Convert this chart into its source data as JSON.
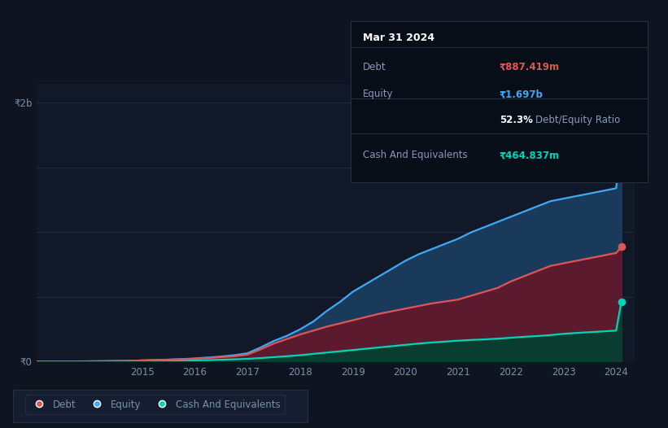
{
  "bg_color": "#0e1521",
  "plot_bg_color": "#111827",
  "years": [
    2013.0,
    2013.25,
    2013.5,
    2013.75,
    2014.0,
    2014.25,
    2014.5,
    2014.75,
    2015.0,
    2015.25,
    2015.5,
    2015.75,
    2016.0,
    2016.25,
    2016.5,
    2016.75,
    2017.0,
    2017.25,
    2017.5,
    2017.75,
    2018.0,
    2018.25,
    2018.5,
    2018.75,
    2019.0,
    2019.25,
    2019.5,
    2019.75,
    2020.0,
    2020.25,
    2020.5,
    2020.75,
    2021.0,
    2021.25,
    2021.5,
    2021.75,
    2022.0,
    2022.25,
    2022.5,
    2022.75,
    2023.0,
    2023.25,
    2023.5,
    2023.75,
    2024.0,
    2024.1
  ],
  "debt": [
    0.002,
    0.002,
    0.002,
    0.002,
    0.003,
    0.004,
    0.005,
    0.006,
    0.01,
    0.012,
    0.015,
    0.018,
    0.022,
    0.028,
    0.035,
    0.042,
    0.055,
    0.095,
    0.14,
    0.175,
    0.21,
    0.24,
    0.27,
    0.295,
    0.32,
    0.345,
    0.37,
    0.39,
    0.41,
    0.43,
    0.45,
    0.465,
    0.48,
    0.51,
    0.54,
    0.57,
    0.62,
    0.66,
    0.7,
    0.74,
    0.76,
    0.78,
    0.8,
    0.82,
    0.84,
    0.887
  ],
  "equity": [
    0.002,
    0.002,
    0.002,
    0.002,
    0.003,
    0.004,
    0.005,
    0.006,
    0.01,
    0.013,
    0.016,
    0.02,
    0.025,
    0.032,
    0.04,
    0.05,
    0.065,
    0.11,
    0.16,
    0.2,
    0.25,
    0.31,
    0.39,
    0.46,
    0.54,
    0.6,
    0.66,
    0.72,
    0.78,
    0.83,
    0.87,
    0.91,
    0.95,
    1.0,
    1.04,
    1.08,
    1.12,
    1.16,
    1.2,
    1.24,
    1.26,
    1.28,
    1.3,
    1.32,
    1.34,
    1.697
  ],
  "cash": [
    0.001,
    0.001,
    0.001,
    0.001,
    0.002,
    0.002,
    0.003,
    0.003,
    0.004,
    0.005,
    0.006,
    0.008,
    0.01,
    0.012,
    0.015,
    0.018,
    0.022,
    0.028,
    0.035,
    0.042,
    0.05,
    0.06,
    0.07,
    0.08,
    0.09,
    0.1,
    0.11,
    0.12,
    0.13,
    0.14,
    0.148,
    0.155,
    0.162,
    0.168,
    0.172,
    0.178,
    0.185,
    0.192,
    0.198,
    0.205,
    0.215,
    0.222,
    0.228,
    0.234,
    0.24,
    0.465
  ],
  "debt_color": "#e05555",
  "equity_color": "#3fa9f5",
  "cash_color": "#00d4b8",
  "debt_fill": "#5c1a2e",
  "equity_fill": "#1a3a5c",
  "cash_fill": "#0a3d30",
  "grid_color": "#1e2d45",
  "tick_color": "#7a8fa8",
  "xmin": 2013.0,
  "xmax": 2024.35,
  "ymin": 0.0,
  "ymax": 2.15,
  "ytick_positions": [
    0.0,
    2.0
  ],
  "ytick_labels": [
    "₹0",
    "₹2b"
  ],
  "xticks": [
    2015,
    2016,
    2017,
    2018,
    2019,
    2020,
    2021,
    2022,
    2023,
    2024
  ],
  "tooltip_title": "Mar 31 2024",
  "tooltip_rows": [
    {
      "label": "Debt",
      "value": "₹887.419m",
      "value_color": "#e05555",
      "has_divider": true
    },
    {
      "label": "Equity",
      "value": "₹1.697b",
      "value_color": "#3fa9f5",
      "has_divider": false
    },
    {
      "label": "",
      "value": "52.3% Debt/Equity Ratio",
      "value_color": "#ccddee",
      "has_divider": true,
      "bold_prefix": "52.3%"
    },
    {
      "label": "Cash And Equivalents",
      "value": "₹464.837m",
      "value_color": "#00d4b8",
      "has_divider": false
    }
  ],
  "legend_items": [
    {
      "label": "Debt",
      "color": "#e05555"
    },
    {
      "label": "Equity",
      "color": "#3fa9f5"
    },
    {
      "label": "Cash And Equivalents",
      "color": "#00d4b8"
    }
  ]
}
